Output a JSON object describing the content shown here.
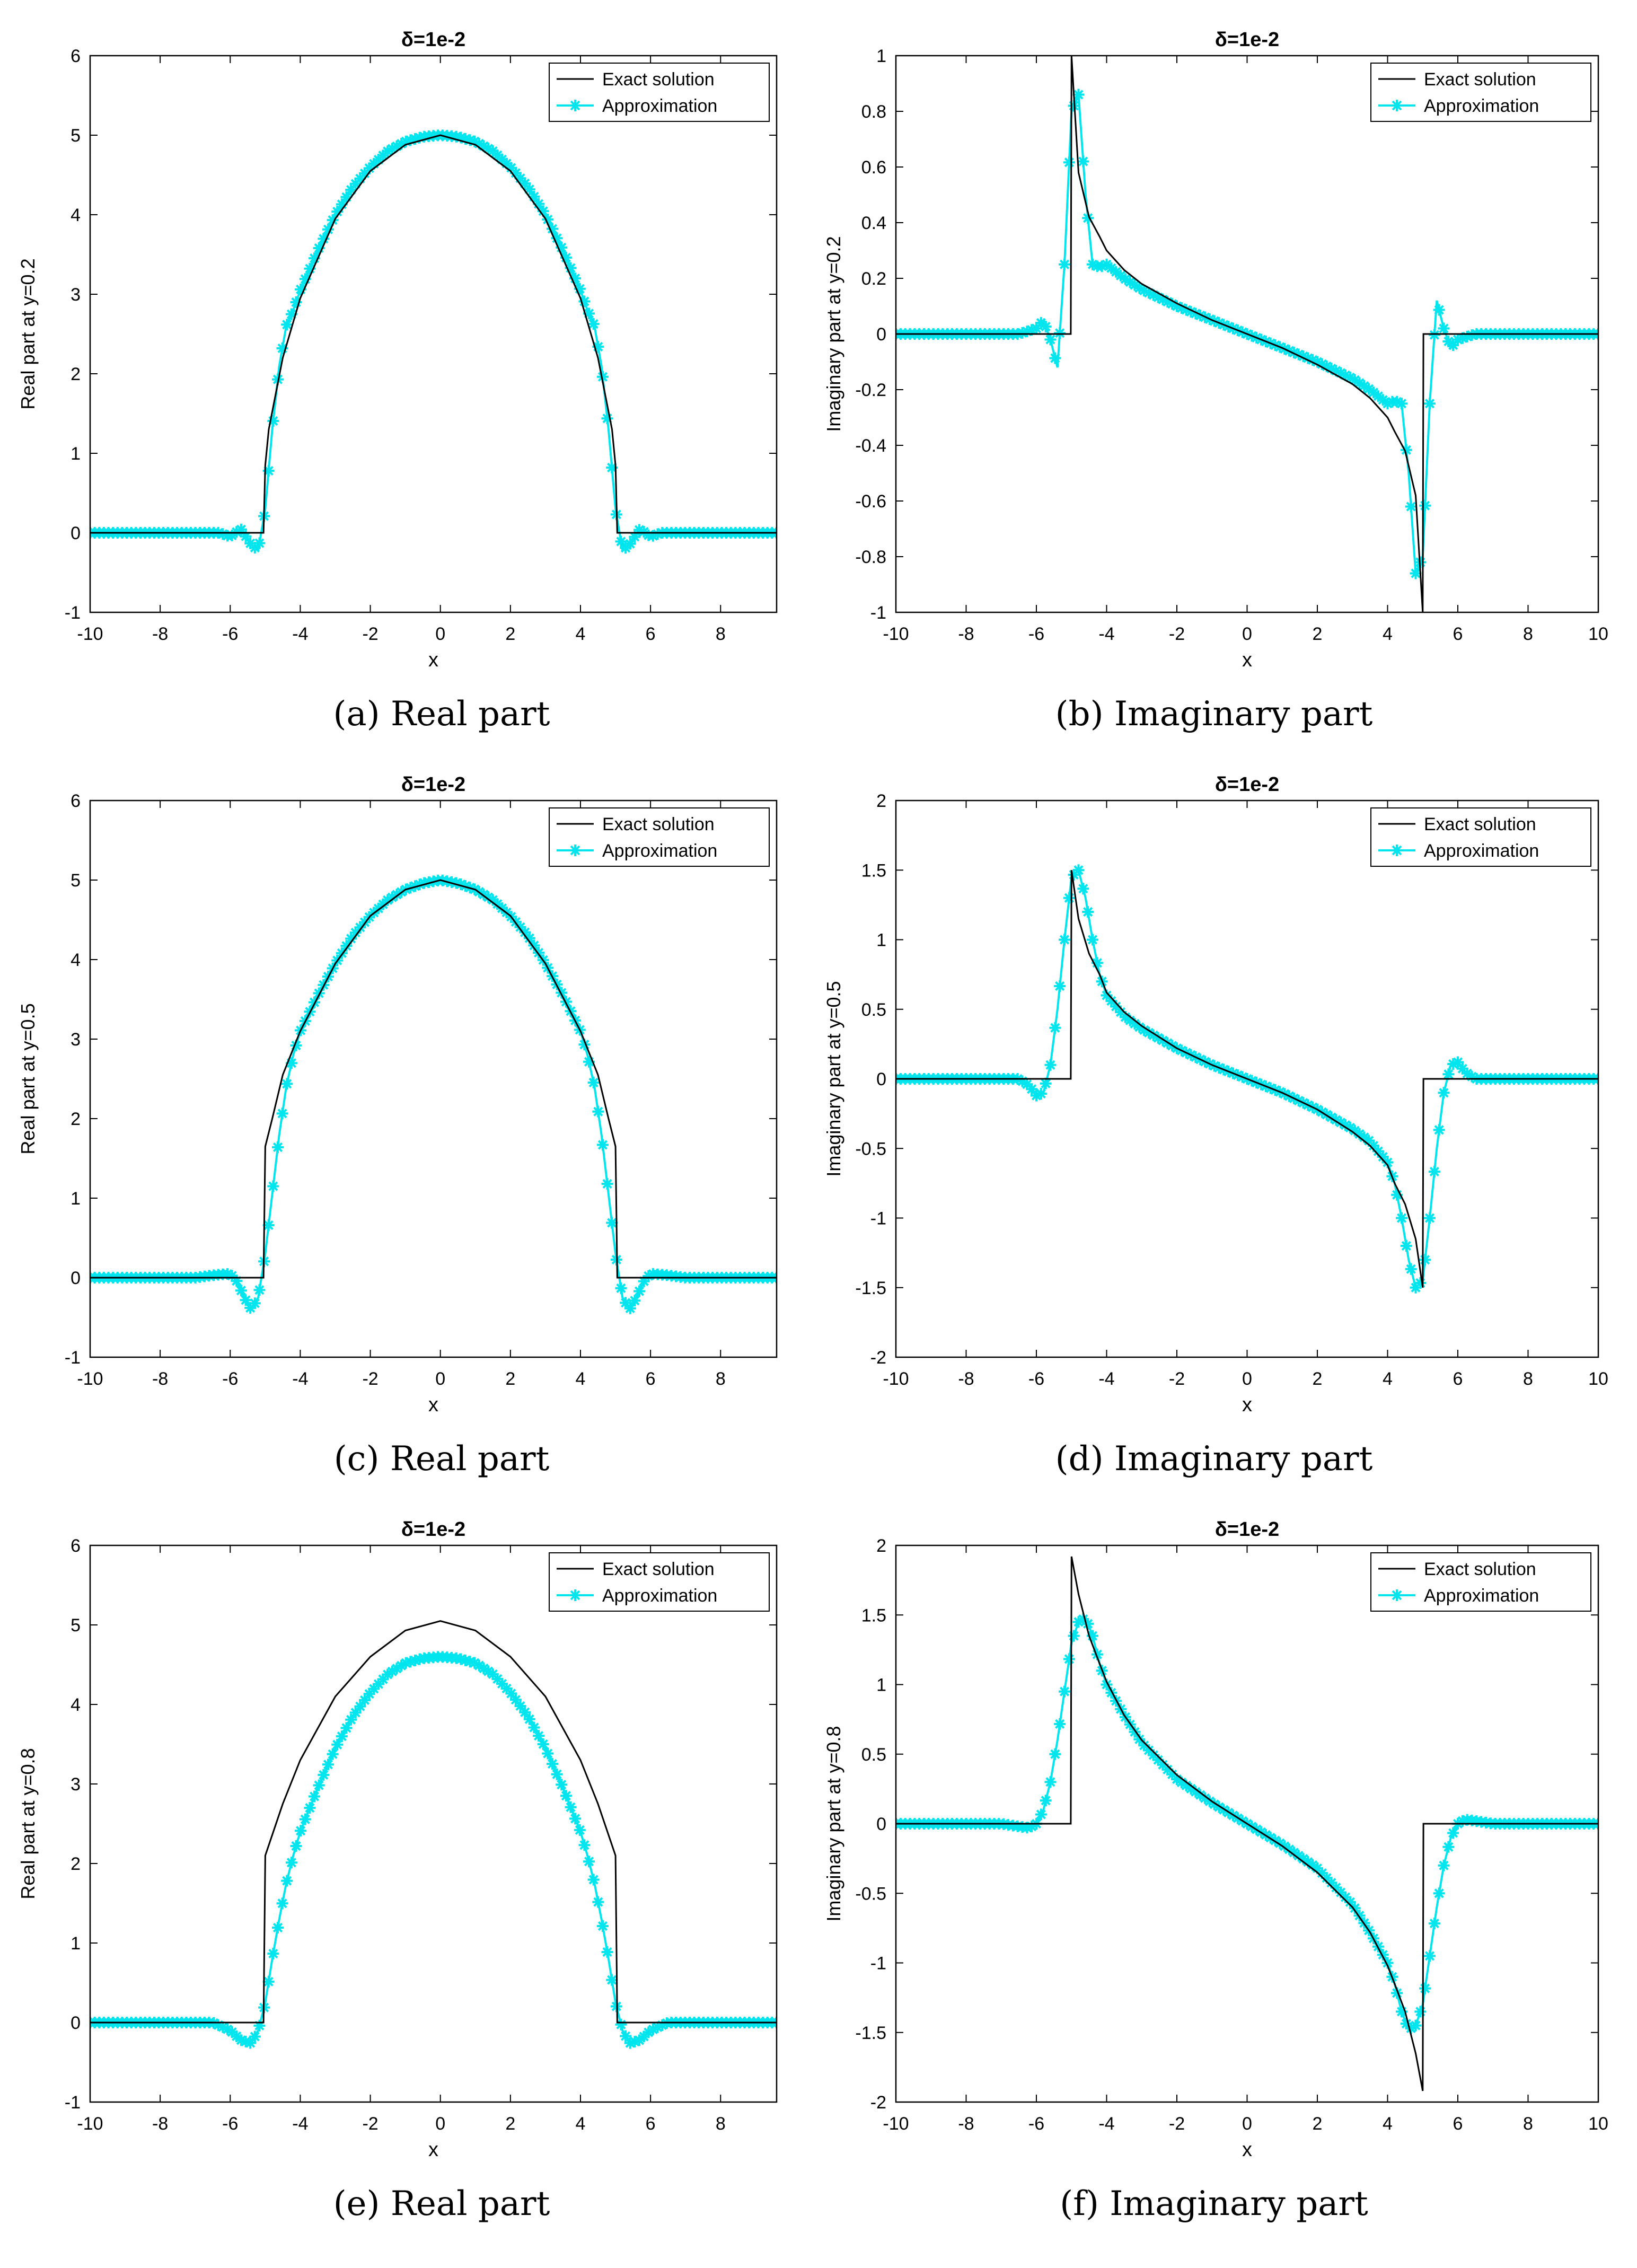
{
  "colors": {
    "exact": "#000000",
    "approximation": "#00e5ee",
    "axes": "#000000",
    "background": "#ffffff"
  },
  "legend": {
    "exact_label": "Exact solution",
    "approx_label": "Approximation",
    "placement": "top-right"
  },
  "chart_data": [
    {
      "id": "a",
      "type": "line",
      "title": "δ=1e-2",
      "xlabel": "x",
      "ylabel": "Real part at y=0.2",
      "caption": "(a) Real part",
      "xlim": [
        -10,
        9.6
      ],
      "ylim": [
        -1,
        6
      ],
      "xticks": [
        -10,
        -8,
        -6,
        -4,
        -2,
        0,
        2,
        4,
        6,
        8
      ],
      "yticks": [
        -1,
        0,
        1,
        2,
        3,
        4,
        5,
        6
      ],
      "series": [
        {
          "name": "Exact solution",
          "x": [
            -10,
            -5.05,
            -5.0,
            -4.9,
            -4.5,
            -4,
            -3,
            -2,
            -1,
            0,
            1,
            2,
            3,
            4,
            4.5,
            4.9,
            5.0,
            5.05,
            9.6
          ],
          "y": [
            0,
            0,
            0.85,
            1.3,
            2.2,
            2.95,
            3.95,
            4.55,
            4.88,
            5.0,
            4.88,
            4.55,
            3.95,
            2.95,
            2.2,
            1.3,
            0.85,
            0,
            0
          ]
        },
        {
          "name": "Approximation",
          "x": [
            -10,
            -7,
            -6.3,
            -6,
            -5.7,
            -5.4,
            -5.2,
            -5.0,
            -4.8,
            -4.6,
            -4.4,
            -4.2,
            -4,
            -3.5,
            -3,
            -2.5,
            -2,
            -1.5,
            -1,
            -0.5,
            0,
            0.5,
            1,
            1.5,
            2,
            2.5,
            3,
            3.5,
            4,
            4.2,
            4.4,
            4.6,
            4.8,
            5.0,
            5.2,
            5.4,
            5.7,
            6,
            6.3,
            7,
            9.6
          ],
          "y": [
            0,
            0,
            0.0,
            -0.05,
            0.05,
            -0.15,
            -0.22,
            0.3,
            1.3,
            2.1,
            2.6,
            2.8,
            3.05,
            3.55,
            4.0,
            4.35,
            4.6,
            4.8,
            4.92,
            4.98,
            5.0,
            4.98,
            4.92,
            4.8,
            4.6,
            4.35,
            4.0,
            3.55,
            3.05,
            2.8,
            2.6,
            2.1,
            1.3,
            0.3,
            -0.22,
            -0.15,
            0.05,
            -0.05,
            0.0,
            0,
            0
          ]
        }
      ]
    },
    {
      "id": "b",
      "type": "line",
      "title": "δ=1e-2",
      "xlabel": "x",
      "ylabel": "Imaginary part at y=0.2",
      "caption": "(b) Imaginary part",
      "xlim": [
        -10,
        10
      ],
      "ylim": [
        -1,
        1
      ],
      "xticks": [
        -10,
        -8,
        -6,
        -4,
        -2,
        0,
        2,
        4,
        6,
        8,
        10
      ],
      "yticks": [
        -1,
        -0.8,
        -0.6,
        -0.4,
        -0.2,
        0,
        0.2,
        0.4,
        0.6,
        0.8,
        1
      ],
      "series": [
        {
          "name": "Exact solution",
          "x": [
            -10,
            -5.02,
            -5.0,
            -4.8,
            -4.5,
            -4.2,
            -4,
            -3.5,
            -3,
            -2,
            -1,
            0,
            1,
            2,
            3,
            3.5,
            4,
            4.2,
            4.5,
            4.8,
            5.0,
            5.02,
            10
          ],
          "y": [
            0,
            0,
            1.0,
            0.58,
            0.42,
            0.35,
            0.3,
            0.23,
            0.18,
            0.11,
            0.05,
            0,
            -0.05,
            -0.11,
            -0.18,
            -0.23,
            -0.3,
            -0.35,
            -0.42,
            -0.58,
            -1.0,
            0,
            0
          ]
        },
        {
          "name": "Approximation",
          "x": [
            -10,
            -7,
            -6.5,
            -6.0,
            -5.8,
            -5.6,
            -5.4,
            -5.2,
            -5.0,
            -4.8,
            -4.6,
            -4.4,
            -4.2,
            -4.0,
            -3.5,
            -3,
            -2,
            -1,
            0,
            1,
            2,
            3,
            3.5,
            4.0,
            4.2,
            4.4,
            4.6,
            4.8,
            5.0,
            5.2,
            5.4,
            5.6,
            5.8,
            6.0,
            6.5,
            7,
            10
          ],
          "y": [
            0,
            0,
            0.0,
            0.02,
            0.05,
            -0.02,
            -0.12,
            0.25,
            0.8,
            0.86,
            0.5,
            0.25,
            0.24,
            0.25,
            0.2,
            0.16,
            0.1,
            0.05,
            0,
            -0.05,
            -0.1,
            -0.16,
            -0.2,
            -0.25,
            -0.24,
            -0.25,
            -0.5,
            -0.86,
            -0.8,
            -0.25,
            0.12,
            0.02,
            -0.05,
            -0.02,
            0.0,
            0,
            0
          ]
        }
      ]
    },
    {
      "id": "c",
      "type": "line",
      "title": "δ=1e-2",
      "xlabel": "x",
      "ylabel": "Real part at y=0.5",
      "caption": "(c) Real part",
      "xlim": [
        -10,
        9.6
      ],
      "ylim": [
        -1,
        6
      ],
      "xticks": [
        -10,
        -8,
        -6,
        -4,
        -2,
        0,
        2,
        4,
        6,
        8
      ],
      "yticks": [
        -1,
        0,
        1,
        2,
        3,
        4,
        5,
        6
      ],
      "series": [
        {
          "name": "Exact solution",
          "x": [
            -10,
            -5.05,
            -5.0,
            -4.8,
            -4.5,
            -4,
            -3,
            -2,
            -1,
            0,
            1,
            2,
            3,
            4,
            4.5,
            4.8,
            5.0,
            5.05,
            9.6
          ],
          "y": [
            0,
            0,
            1.65,
            2.0,
            2.55,
            3.1,
            3.95,
            4.55,
            4.88,
            5.0,
            4.88,
            4.55,
            3.95,
            3.1,
            2.55,
            2.0,
            1.65,
            0,
            0
          ]
        },
        {
          "name": "Approximation",
          "x": [
            -10,
            -7.5,
            -7,
            -6.5,
            -6.0,
            -5.8,
            -5.6,
            -5.4,
            -5.2,
            -5.0,
            -4.8,
            -4.6,
            -4.4,
            -4.2,
            -4,
            -3.5,
            -3,
            -2.5,
            -2,
            -1.5,
            -1,
            -0.5,
            0,
            0.5,
            1,
            1.5,
            2,
            2.5,
            3,
            3.5,
            4,
            4.2,
            4.4,
            4.6,
            4.8,
            5.0,
            5.2,
            5.4,
            5.6,
            5.8,
            6.0,
            6.5,
            7,
            7.5,
            9.6
          ],
          "y": [
            0,
            0,
            0.0,
            0.03,
            0.05,
            -0.05,
            -0.25,
            -0.4,
            -0.25,
            0.3,
            1.05,
            1.8,
            2.4,
            2.8,
            3.1,
            3.55,
            3.95,
            4.3,
            4.55,
            4.75,
            4.88,
            4.96,
            5.0,
            4.96,
            4.88,
            4.75,
            4.55,
            4.3,
            3.95,
            3.55,
            3.1,
            2.8,
            2.4,
            1.8,
            1.05,
            0.3,
            -0.25,
            -0.4,
            -0.25,
            -0.05,
            0.05,
            0.03,
            0.0,
            0,
            0
          ]
        }
      ]
    },
    {
      "id": "d",
      "type": "line",
      "title": "δ=1e-2",
      "xlabel": "x",
      "ylabel": "Imaginary part at y=0.5",
      "caption": "(d) Imaginary part",
      "xlim": [
        -10,
        10
      ],
      "ylim": [
        -2,
        2
      ],
      "xticks": [
        -10,
        -8,
        -6,
        -4,
        -2,
        0,
        2,
        4,
        6,
        8,
        10
      ],
      "yticks": [
        -2,
        -1.5,
        -1,
        -0.5,
        0,
        0.5,
        1,
        1.5,
        2
      ],
      "series": [
        {
          "name": "Exact solution",
          "x": [
            -10,
            -5.02,
            -5.0,
            -4.8,
            -4.5,
            -4.2,
            -4,
            -3.5,
            -3,
            -2,
            -1,
            0,
            1,
            2,
            3,
            3.5,
            4,
            4.2,
            4.5,
            4.8,
            5.0,
            5.02,
            10
          ],
          "y": [
            0,
            0,
            1.5,
            1.15,
            0.9,
            0.75,
            0.62,
            0.48,
            0.38,
            0.22,
            0.1,
            0,
            -0.1,
            -0.22,
            -0.38,
            -0.48,
            -0.62,
            -0.75,
            -0.9,
            -1.15,
            -1.5,
            0,
            0
          ]
        },
        {
          "name": "Approximation",
          "x": [
            -10,
            -7,
            -6.5,
            -6.2,
            -6.0,
            -5.8,
            -5.6,
            -5.4,
            -5.2,
            -5.0,
            -4.8,
            -4.6,
            -4.4,
            -4.2,
            -4,
            -3.5,
            -3,
            -2,
            -1,
            0,
            1,
            2,
            3,
            3.5,
            4,
            4.2,
            4.4,
            4.6,
            4.8,
            5.0,
            5.2,
            5.4,
            5.6,
            5.8,
            6.0,
            6.2,
            6.5,
            7,
            10
          ],
          "y": [
            0,
            0,
            0.0,
            -0.05,
            -0.12,
            -0.1,
            0.1,
            0.5,
            1.0,
            1.45,
            1.5,
            1.3,
            1.0,
            0.75,
            0.6,
            0.45,
            0.36,
            0.22,
            0.1,
            0,
            -0.1,
            -0.22,
            -0.36,
            -0.45,
            -0.6,
            -0.75,
            -1.0,
            -1.3,
            -1.5,
            -1.45,
            -1.0,
            -0.5,
            -0.1,
            0.1,
            0.12,
            0.05,
            0.0,
            0,
            0
          ]
        }
      ]
    },
    {
      "id": "e",
      "type": "line",
      "title": "δ=1e-2",
      "xlabel": "x",
      "ylabel": "Real part at y=0.8",
      "caption": "(e) Real part",
      "xlim": [
        -10,
        9.6
      ],
      "ylim": [
        -1,
        6
      ],
      "xticks": [
        -10,
        -8,
        -6,
        -4,
        -2,
        0,
        2,
        4,
        6,
        8
      ],
      "yticks": [
        -1,
        0,
        1,
        2,
        3,
        4,
        5,
        6
      ],
      "series": [
        {
          "name": "Exact solution",
          "x": [
            -10,
            -5.05,
            -5.0,
            -4.5,
            -4,
            -3,
            -2,
            -1,
            0,
            1,
            2,
            3,
            4,
            4.5,
            5.0,
            5.05,
            9.6
          ],
          "y": [
            0,
            0,
            2.1,
            2.75,
            3.3,
            4.1,
            4.6,
            4.93,
            5.05,
            4.93,
            4.6,
            4.1,
            3.3,
            2.75,
            2.1,
            0,
            0
          ]
        },
        {
          "name": "Approximation",
          "x": [
            -10,
            -7,
            -6.5,
            -6.0,
            -5.7,
            -5.4,
            -5.2,
            -5.0,
            -4.8,
            -4.6,
            -4.4,
            -4.2,
            -4,
            -3.5,
            -3,
            -2.5,
            -2,
            -1.5,
            -1,
            -0.5,
            0,
            0.5,
            1,
            1.5,
            2,
            2.5,
            3,
            3.5,
            4,
            4.2,
            4.4,
            4.6,
            4.8,
            5.0,
            5.2,
            5.4,
            5.7,
            6.0,
            6.5,
            7,
            9.6
          ],
          "y": [
            0,
            0,
            0.0,
            -0.1,
            -0.22,
            -0.26,
            -0.1,
            0.25,
            0.8,
            1.3,
            1.75,
            2.1,
            2.4,
            2.95,
            3.45,
            3.85,
            4.15,
            4.38,
            4.52,
            4.58,
            4.6,
            4.58,
            4.52,
            4.38,
            4.15,
            3.85,
            3.45,
            2.95,
            2.4,
            2.1,
            1.75,
            1.3,
            0.8,
            0.25,
            -0.1,
            -0.26,
            -0.22,
            -0.1,
            0.0,
            0,
            0
          ]
        }
      ]
    },
    {
      "id": "f",
      "type": "line",
      "title": "δ=1e-2",
      "xlabel": "x",
      "ylabel": "Imaginary part at y=0.8",
      "caption": "(f) Imaginary part",
      "xlim": [
        -10,
        10
      ],
      "ylim": [
        -2,
        2
      ],
      "xticks": [
        -10,
        -8,
        -6,
        -4,
        -2,
        0,
        2,
        4,
        6,
        8,
        10
      ],
      "yticks": [
        -2,
        -1.5,
        -1,
        -0.5,
        0,
        0.5,
        1,
        1.5,
        2
      ],
      "series": [
        {
          "name": "Exact solution",
          "x": [
            -10,
            -5.02,
            -5.0,
            -4.8,
            -4.5,
            -4.2,
            -4,
            -3.5,
            -3,
            -2,
            -1,
            0,
            1,
            2,
            3,
            3.5,
            4,
            4.2,
            4.5,
            4.8,
            5.0,
            5.02,
            10
          ],
          "y": [
            0,
            0,
            1.92,
            1.65,
            1.35,
            1.15,
            1.02,
            0.78,
            0.6,
            0.35,
            0.16,
            0,
            -0.16,
            -0.35,
            -0.6,
            -0.78,
            -1.02,
            -1.15,
            -1.35,
            -1.65,
            -1.92,
            0,
            0
          ]
        },
        {
          "name": "Approximation",
          "x": [
            -10,
            -7.5,
            -7,
            -6.5,
            -6.2,
            -6.0,
            -5.8,
            -5.6,
            -5.4,
            -5.2,
            -5.0,
            -4.8,
            -4.6,
            -4.4,
            -4.2,
            -4,
            -3.5,
            -3,
            -2,
            -1,
            0,
            1,
            2,
            3,
            3.5,
            4,
            4.2,
            4.4,
            4.6,
            4.8,
            5.0,
            5.2,
            5.4,
            5.6,
            5.8,
            6.0,
            6.2,
            6.5,
            7,
            7.5,
            10
          ],
          "y": [
            0,
            0,
            0.0,
            -0.02,
            -0.03,
            0.0,
            0.1,
            0.3,
            0.6,
            0.95,
            1.3,
            1.45,
            1.48,
            1.35,
            1.15,
            1.0,
            0.78,
            0.58,
            0.32,
            0.15,
            0,
            -0.15,
            -0.32,
            -0.58,
            -0.78,
            -1.0,
            -1.15,
            -1.35,
            -1.48,
            -1.45,
            -1.3,
            -0.95,
            -0.6,
            -0.3,
            -0.1,
            0.0,
            0.03,
            0.02,
            0.0,
            0,
            0
          ]
        }
      ]
    }
  ]
}
